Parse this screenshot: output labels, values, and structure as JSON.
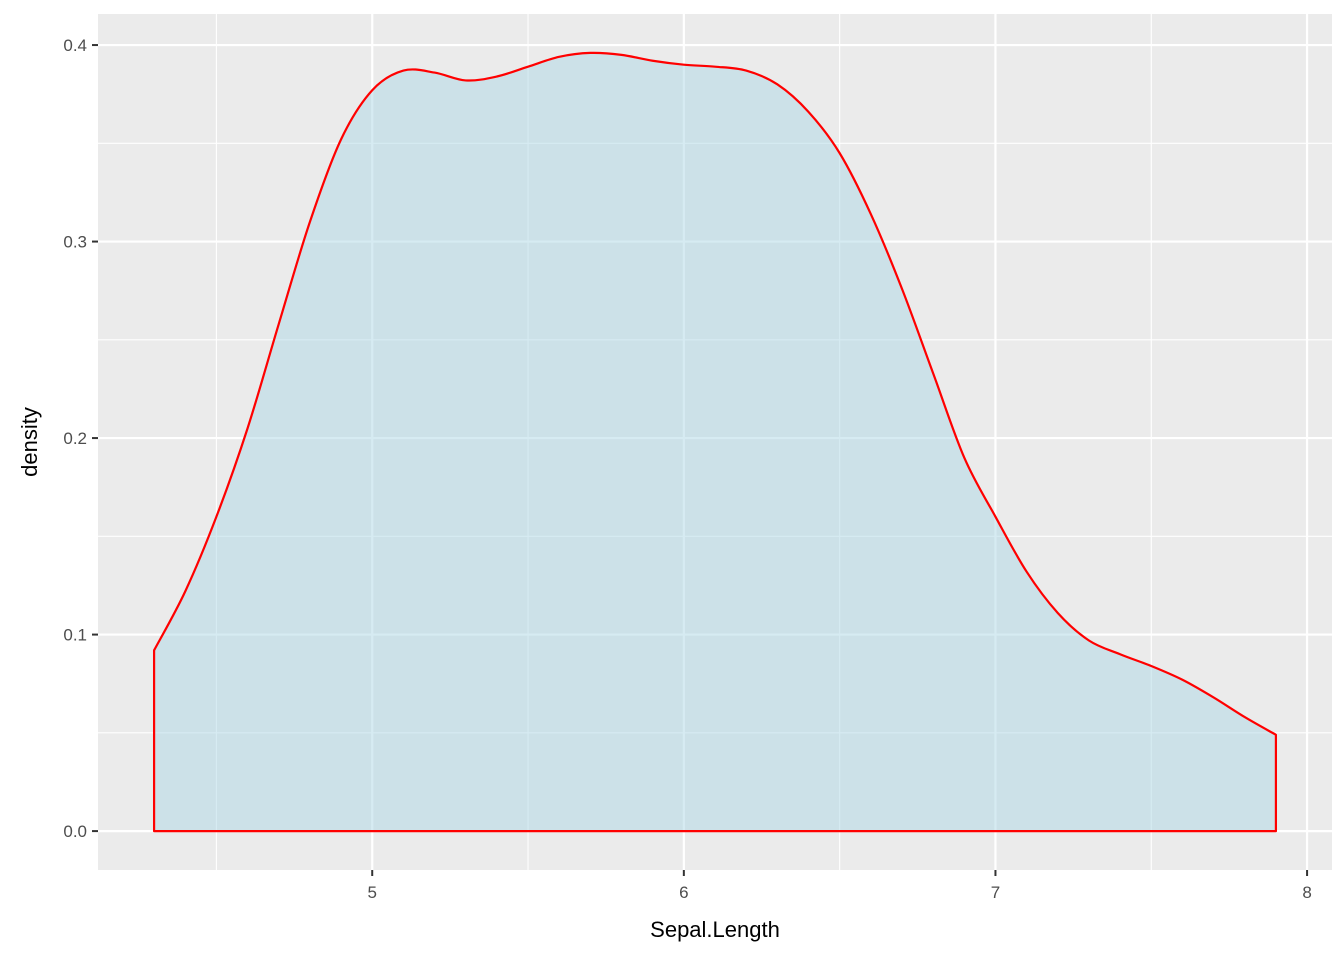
{
  "chart_data": {
    "type": "area",
    "title": "",
    "xlabel": "Sepal.Length",
    "ylabel": "density",
    "xlim": [
      4.12,
      8.08
    ],
    "ylim": [
      -0.0198,
      0.4158
    ],
    "x_ticks": [
      {
        "value": 5,
        "label": "5"
      },
      {
        "value": 6,
        "label": "6"
      },
      {
        "value": 7,
        "label": "7"
      },
      {
        "value": 8,
        "label": "8"
      }
    ],
    "y_ticks": [
      {
        "value": 0.0,
        "label": "0.0"
      },
      {
        "value": 0.1,
        "label": "0.1"
      },
      {
        "value": 0.2,
        "label": "0.2"
      },
      {
        "value": 0.3,
        "label": "0.3"
      },
      {
        "value": 0.4,
        "label": "0.4"
      }
    ],
    "x_minor": [
      4.5,
      5.5,
      6.5,
      7.5
    ],
    "y_minor": [
      0.05,
      0.15,
      0.25,
      0.35
    ],
    "grid": true,
    "colors": {
      "panel": "#ebebeb",
      "grid": "#ffffff",
      "fill": "#add8e6",
      "fill_opacity": 0.5,
      "line": "#ff0000"
    },
    "series": [
      {
        "x": [
          4.3,
          4.4,
          4.5,
          4.6,
          4.7,
          4.8,
          4.9,
          5.0,
          5.1,
          5.2,
          5.3,
          5.4,
          5.5,
          5.6,
          5.7,
          5.8,
          5.9,
          6.0,
          6.1,
          6.2,
          6.3,
          6.4,
          6.5,
          6.6,
          6.7,
          6.8,
          6.9,
          7.0,
          7.1,
          7.2,
          7.3,
          7.4,
          7.5,
          7.6,
          7.7,
          7.8,
          7.9
        ],
        "y": [
          0.092,
          0.122,
          0.16,
          0.205,
          0.258,
          0.31,
          0.352,
          0.377,
          0.387,
          0.386,
          0.382,
          0.384,
          0.389,
          0.394,
          0.396,
          0.395,
          0.392,
          0.39,
          0.389,
          0.387,
          0.38,
          0.366,
          0.345,
          0.314,
          0.276,
          0.233,
          0.19,
          0.16,
          0.132,
          0.111,
          0.097,
          0.09,
          0.084,
          0.077,
          0.068,
          0.058,
          0.049
        ]
      }
    ]
  }
}
